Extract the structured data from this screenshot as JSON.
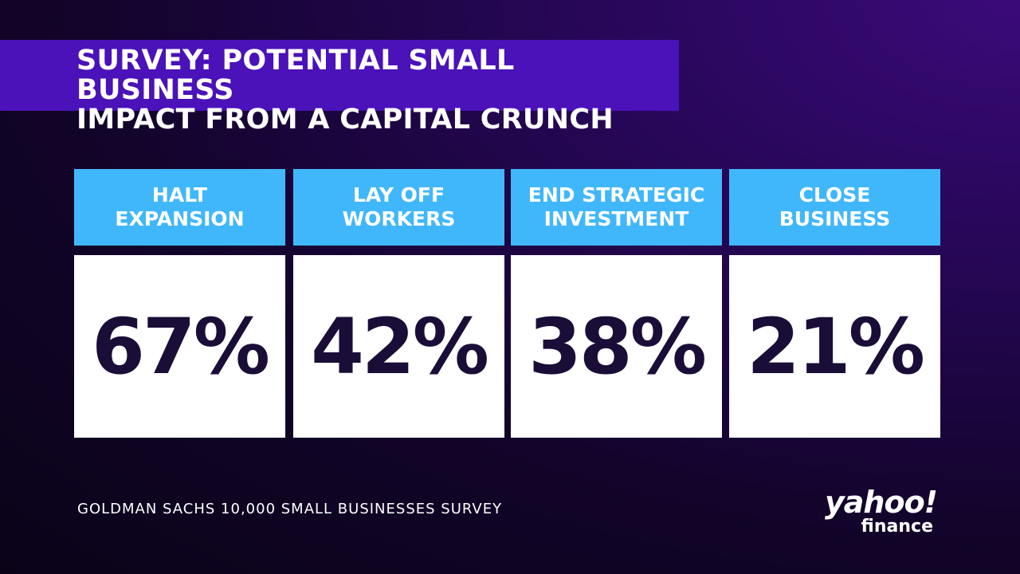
{
  "title": {
    "line1": "SURVEY: POTENTIAL SMALL BUSINESS",
    "line2": "IMPACT FROM A CAPITAL CRUNCH"
  },
  "chart_data": {
    "type": "table",
    "title": "SURVEY: POTENTIAL SMALL BUSINESS IMPACT FROM A CAPITAL CRUNCH",
    "categories": [
      "HALT EXPANSION",
      "LAY OFF WORKERS",
      "END STRATEGIC INVESTMENT",
      "CLOSE BUSINESS"
    ],
    "values": [
      67,
      42,
      38,
      21
    ],
    "labels": [
      "67%",
      "42%",
      "38%",
      "21%"
    ],
    "headers": [
      [
        "HALT",
        "EXPANSION"
      ],
      [
        "LAY OFF",
        "WORKERS"
      ],
      [
        "END STRATEGIC",
        "INVESTMENT"
      ],
      [
        "CLOSE",
        "BUSINESS"
      ]
    ]
  },
  "source": "GOLDMAN SACHS 10,000 SMALL BUSINESSES SURVEY",
  "logo": {
    "brand": "yahoo!",
    "sub": "finance"
  },
  "colors": {
    "title_bar": "#4a12b8",
    "header": "#41b7fb",
    "value_text": "#1a0e38"
  }
}
